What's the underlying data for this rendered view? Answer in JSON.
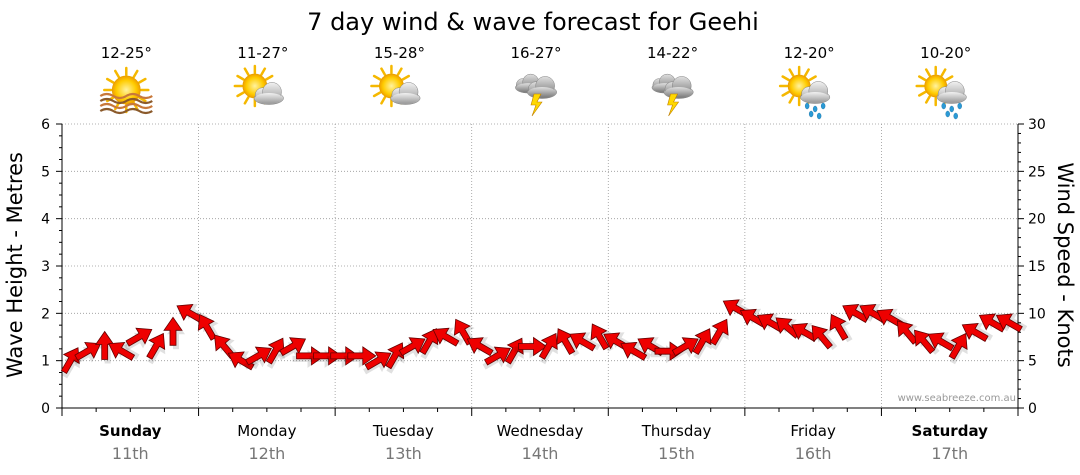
{
  "title": "7 day wind & wave forecast for Geehi",
  "credit": "www.seabreeze.com.au",
  "days": [
    {
      "name": "Sunday",
      "date": "11th",
      "bold": true,
      "temp": "12-25°",
      "icon": "sun-haze-icon"
    },
    {
      "name": "Monday",
      "date": "12th",
      "bold": false,
      "temp": "11-27°",
      "icon": "partly-cloudy-icon"
    },
    {
      "name": "Tuesday",
      "date": "13th",
      "bold": false,
      "temp": "15-28°",
      "icon": "partly-cloudy-icon"
    },
    {
      "name": "Wednesday",
      "date": "14th",
      "bold": false,
      "temp": "16-27°",
      "icon": "thunderstorm-icon"
    },
    {
      "name": "Thursday",
      "date": "15th",
      "bold": false,
      "temp": "14-22°",
      "icon": "thunderstorm-icon"
    },
    {
      "name": "Friday",
      "date": "16th",
      "bold": false,
      "temp": "12-20°",
      "icon": "sun-shower-icon"
    },
    {
      "name": "Saturday",
      "date": "17th",
      "bold": true,
      "temp": "10-20°",
      "icon": "sun-shower-icon"
    }
  ],
  "colors": {
    "arrow": "#ee0000",
    "arrow_stroke": "#660000",
    "grid": "#999999",
    "axis": "#000000",
    "date_text": "#777777"
  },
  "chart_data": {
    "type": "line",
    "title": "7 day wind & wave forecast for Geehi",
    "ylabel": "Wave Height - Metres",
    "y2label": "Wind Speed - Knots",
    "ylim": [
      0,
      6
    ],
    "y2lim": [
      0,
      30
    ],
    "yticks": [
      "0",
      "1",
      "2",
      "3",
      "4",
      "5",
      "6"
    ],
    "y2ticks": [
      "0",
      "5",
      "10",
      "15",
      "20",
      "25",
      "30"
    ],
    "grid": true,
    "series": [
      {
        "name": "Wind Speed",
        "unit": "knots",
        "points_per_day": 8,
        "values": [
          5,
          6,
          6.5,
          6,
          7.5,
          6.5,
          8,
          10,
          8.5,
          6.5,
          5,
          5.5,
          6,
          6.5,
          5.5,
          5.5,
          5.5,
          5.5,
          5,
          5.5,
          6.5,
          7,
          7.5,
          8,
          6.5,
          5.5,
          6,
          6.5,
          6.5,
          7,
          7,
          7.5,
          7,
          6,
          6.5,
          6,
          6.5,
          7,
          8,
          10.5,
          9.5,
          9,
          8.5,
          8,
          7.5,
          8.5,
          10,
          10,
          9.5,
          8,
          7,
          7,
          6.5,
          8,
          9,
          9
        ],
        "directions_deg": [
          30,
          60,
          0,
          300,
          60,
          30,
          0,
          300,
          330,
          320,
          300,
          60,
          30,
          60,
          90,
          90,
          90,
          90,
          60,
          30,
          60,
          30,
          300,
          330,
          300,
          60,
          30,
          90,
          30,
          330,
          300,
          330,
          300,
          300,
          300,
          90,
          60,
          30,
          30,
          300,
          300,
          300,
          310,
          300,
          320,
          330,
          300,
          300,
          300,
          320,
          320,
          300,
          30,
          300,
          300,
          300
        ]
      }
    ]
  }
}
